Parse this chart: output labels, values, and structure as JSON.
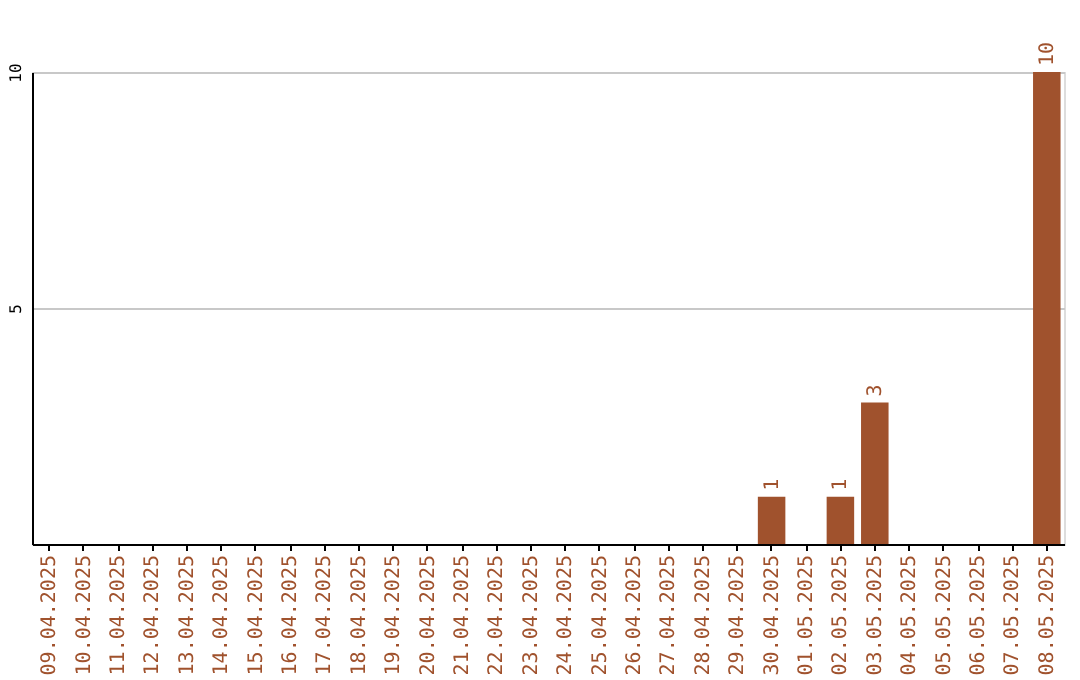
{
  "chart_data": {
    "type": "bar",
    "categories": [
      "09.04.2025",
      "10.04.2025",
      "11.04.2025",
      "12.04.2025",
      "13.04.2025",
      "14.04.2025",
      "15.04.2025",
      "16.04.2025",
      "17.04.2025",
      "18.04.2025",
      "19.04.2025",
      "20.04.2025",
      "21.04.2025",
      "22.04.2025",
      "23.04.2025",
      "24.04.2025",
      "25.04.2025",
      "26.04.2025",
      "27.04.2025",
      "28.04.2025",
      "29.04.2025",
      "30.04.2025",
      "01.05.2025",
      "02.05.2025",
      "03.05.2025",
      "04.05.2025",
      "05.05.2025",
      "06.05.2025",
      "07.05.2025",
      "08.05.2025"
    ],
    "values": [
      0,
      0,
      0,
      0,
      0,
      0,
      0,
      0,
      0,
      0,
      0,
      0,
      0,
      0,
      0,
      0,
      0,
      0,
      0,
      0,
      0,
      1,
      0,
      1,
      3,
      0,
      0,
      0,
      0,
      10
    ],
    "value_labels": [
      null,
      null,
      null,
      null,
      null,
      null,
      null,
      null,
      null,
      null,
      null,
      null,
      null,
      null,
      null,
      null,
      null,
      null,
      null,
      null,
      null,
      "1",
      null,
      "1",
      "3",
      null,
      null,
      null,
      null,
      "10"
    ],
    "color": "#a0522d",
    "ylim": [
      0,
      10
    ],
    "yticks": [
      5,
      10
    ],
    "grid": "y"
  }
}
